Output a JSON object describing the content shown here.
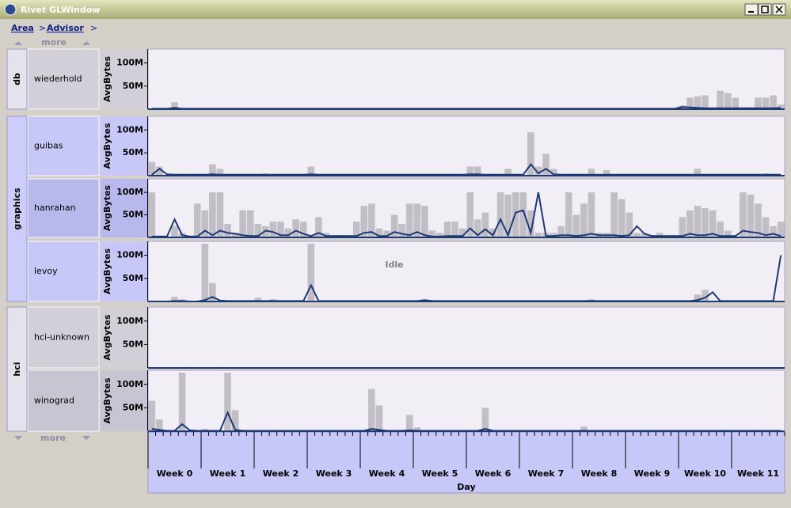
{
  "window": {
    "title": "Rivet GLWindow"
  },
  "breadcrumb": [
    "Area",
    ">",
    "Advisor",
    ">"
  ],
  "more": "more",
  "chart_data": {
    "type": "bar",
    "y_label": "AvgBytes",
    "x_label": "Day",
    "annotation": "Idle",
    "ylim": [
      0,
      130
    ],
    "yticks": [
      {
        "value": 50,
        "label": "50M"
      },
      {
        "value": 100,
        "label": "100M"
      }
    ],
    "xlim": [
      0,
      84
    ],
    "categories": [
      "Week 0",
      "Week 1",
      "Week 2",
      "Week 3",
      "Week 4",
      "Week 5",
      "Week 6",
      "Week 7",
      "Week 8",
      "Week 9",
      "Week 10",
      "Week 11"
    ],
    "bar_color": "#c2bec6",
    "line_color": "#1c3a78",
    "groups": [
      {
        "name": "db",
        "panels": [
          {
            "name": "wiederhold",
            "values": [
              0,
              0,
              0,
              15,
              0,
              0,
              0,
              2,
              0,
              0,
              0,
              0,
              0,
              0,
              0,
              0,
              0,
              0,
              0,
              0,
              0,
              0,
              0,
              0,
              0,
              0,
              0,
              0,
              0,
              0,
              0,
              0,
              0,
              0,
              0,
              0,
              0,
              0,
              0,
              0,
              0,
              0,
              0,
              0,
              0,
              0,
              0,
              0,
              0,
              0,
              0,
              0,
              0,
              0,
              0,
              0,
              0,
              0,
              0,
              0,
              0,
              0,
              0,
              0,
              0,
              0,
              0,
              0,
              0,
              0,
              8,
              25,
              28,
              30,
              0,
              40,
              35,
              25,
              0,
              0,
              25,
              25,
              30,
              10
            ],
            "line": [
              1,
              1,
              1,
              3,
              1,
              1,
              1,
              1,
              1,
              1,
              1,
              1,
              1,
              1,
              1,
              1,
              1,
              1,
              1,
              1,
              1,
              1,
              1,
              1,
              1,
              1,
              1,
              1,
              1,
              1,
              1,
              1,
              1,
              1,
              1,
              1,
              1,
              1,
              1,
              1,
              1,
              1,
              1,
              1,
              1,
              1,
              1,
              1,
              1,
              1,
              1,
              1,
              1,
              1,
              1,
              1,
              1,
              1,
              1,
              1,
              1,
              1,
              1,
              1,
              1,
              1,
              1,
              1,
              1,
              1,
              5,
              4,
              3,
              2,
              2,
              2,
              2,
              2,
              2,
              2,
              2,
              2,
              2,
              3
            ]
          }
        ]
      },
      {
        "name": "graphics",
        "panels": [
          {
            "name": "guibas",
            "values": [
              30,
              20,
              0,
              0,
              0,
              0,
              0,
              0,
              25,
              15,
              0,
              0,
              0,
              0,
              0,
              5,
              4,
              0,
              0,
              0,
              0,
              20,
              3,
              3,
              3,
              0,
              0,
              0,
              0,
              0,
              0,
              0,
              0,
              0,
              0,
              0,
              0,
              0,
              0,
              0,
              0,
              0,
              20,
              20,
              0,
              0,
              0,
              15,
              0,
              0,
              95,
              20,
              48,
              15,
              0,
              0,
              0,
              0,
              15,
              0,
              12,
              0,
              0,
              0,
              0,
              0,
              0,
              0,
              0,
              0,
              0,
              0,
              15,
              0,
              0,
              0,
              0,
              0,
              0,
              0,
              0,
              5,
              0,
              0
            ],
            "line": [
              2,
              15,
              3,
              2,
              2,
              2,
              2,
              2,
              3,
              2,
              2,
              2,
              2,
              2,
              2,
              2,
              2,
              2,
              2,
              2,
              2,
              3,
              2,
              2,
              2,
              2,
              2,
              2,
              2,
              2,
              2,
              2,
              2,
              2,
              2,
              2,
              2,
              2,
              2,
              2,
              2,
              2,
              3,
              3,
              2,
              2,
              2,
              2,
              2,
              2,
              25,
              5,
              15,
              3,
              2,
              2,
              2,
              2,
              2,
              2,
              2,
              2,
              2,
              2,
              2,
              2,
              2,
              2,
              2,
              2,
              2,
              2,
              2,
              2,
              2,
              2,
              2,
              2,
              2,
              2,
              2,
              2,
              2,
              2
            ]
          },
          {
            "name": "hanrahan",
            "values": [
              100,
              0,
              0,
              25,
              10,
              0,
              75,
              60,
              100,
              100,
              30,
              10,
              60,
              60,
              30,
              25,
              35,
              35,
              20,
              40,
              35,
              5,
              45,
              10,
              5,
              5,
              0,
              35,
              70,
              75,
              20,
              15,
              50,
              30,
              75,
              75,
              70,
              15,
              10,
              35,
              35,
              20,
              100,
              40,
              55,
              20,
              100,
              95,
              100,
              100,
              60,
              10,
              10,
              10,
              25,
              100,
              50,
              75,
              100,
              10,
              10,
              100,
              85,
              55,
              10,
              10,
              5,
              10,
              0,
              0,
              45,
              60,
              70,
              65,
              60,
              35,
              15,
              0,
              100,
              95,
              75,
              45,
              25,
              35
            ],
            "line": [
              2,
              2,
              2,
              40,
              5,
              2,
              2,
              15,
              5,
              15,
              10,
              8,
              5,
              3,
              3,
              15,
              12,
              5,
              5,
              15,
              8,
              3,
              10,
              3,
              3,
              3,
              3,
              3,
              10,
              12,
              3,
              3,
              12,
              8,
              5,
              12,
              5,
              2,
              2,
              3,
              3,
              3,
              20,
              5,
              18,
              5,
              40,
              5,
              55,
              60,
              10,
              100,
              3,
              3,
              5,
              5,
              3,
              5,
              8,
              5,
              5,
              5,
              3,
              5,
              25,
              8,
              3,
              3,
              3,
              3,
              3,
              8,
              5,
              5,
              8,
              3,
              3,
              3,
              15,
              12,
              10,
              5,
              8,
              3
            ]
          },
          {
            "name": "levoy",
            "values": [
              0,
              0,
              0,
              10,
              5,
              0,
              0,
              125,
              40,
              0,
              0,
              0,
              0,
              0,
              8,
              0,
              5,
              0,
              0,
              0,
              0,
              125,
              0,
              0,
              0,
              0,
              0,
              0,
              0,
              0,
              0,
              0,
              0,
              0,
              0,
              0,
              0,
              0,
              0,
              0,
              0,
              0,
              0,
              0,
              0,
              0,
              0,
              0,
              0,
              0,
              0,
              0,
              0,
              0,
              0,
              0,
              0,
              0,
              5,
              0,
              0,
              0,
              0,
              0,
              0,
              0,
              0,
              0,
              0,
              0,
              0,
              0,
              15,
              25,
              0,
              0,
              0,
              0,
              0,
              0,
              0,
              0,
              0,
              0
            ],
            "line": [
              0,
              0,
              0,
              1,
              1,
              0,
              0,
              3,
              10,
              2,
              1,
              1,
              1,
              1,
              1,
              1,
              1,
              1,
              1,
              1,
              1,
              35,
              1,
              1,
              1,
              1,
              1,
              1,
              1,
              1,
              1,
              1,
              1,
              1,
              1,
              1,
              3,
              1,
              1,
              1,
              1,
              1,
              1,
              1,
              1,
              1,
              1,
              1,
              1,
              1,
              1,
              1,
              1,
              1,
              1,
              1,
              1,
              1,
              1,
              1,
              1,
              1,
              1,
              1,
              1,
              1,
              1,
              1,
              1,
              1,
              1,
              1,
              3,
              8,
              20,
              1,
              1,
              1,
              1,
              1,
              1,
              1,
              1,
              100
            ]
          }
        ]
      },
      {
        "name": "hci",
        "panels": [
          {
            "name": "hci-unknown",
            "values": [
              0,
              0,
              0,
              0,
              0,
              0,
              0,
              0,
              0,
              0,
              0,
              0,
              0,
              0,
              0,
              0,
              0,
              0,
              0,
              0,
              0,
              0,
              0,
              0,
              0,
              0,
              0,
              0,
              0,
              0,
              0,
              0,
              0,
              0,
              0,
              0,
              0,
              0,
              0,
              0,
              0,
              0,
              0,
              0,
              0,
              0,
              0,
              0,
              0,
              0,
              0,
              0,
              0,
              0,
              0,
              0,
              0,
              0,
              0,
              0,
              0,
              0,
              0,
              0,
              0,
              0,
              0,
              0,
              0,
              0,
              0,
              0,
              0,
              0,
              0,
              0,
              0,
              0,
              0,
              0,
              0,
              0,
              0,
              0
            ],
            "line": [
              0,
              0,
              0,
              0,
              0,
              0,
              0,
              0,
              0,
              0,
              0,
              0,
              0,
              0,
              0,
              0,
              0,
              0,
              0,
              0,
              0,
              0,
              0,
              0,
              0,
              0,
              0,
              0,
              0,
              0,
              0,
              0,
              0,
              0,
              0,
              0,
              0,
              0,
              0,
              0,
              0,
              0,
              0,
              0,
              0,
              0,
              0,
              0,
              0,
              0,
              0,
              0,
              0,
              0,
              0,
              0,
              0,
              0,
              0,
              0,
              0,
              0,
              0,
              0,
              0,
              0,
              0,
              0,
              0,
              0,
              0,
              0,
              0,
              0,
              0,
              0,
              0,
              0,
              0,
              0,
              0,
              0,
              0,
              0
            ]
          },
          {
            "name": "winograd",
            "values": [
              65,
              25,
              0,
              0,
              125,
              0,
              0,
              5,
              0,
              0,
              125,
              45,
              0,
              0,
              0,
              0,
              0,
              0,
              0,
              0,
              0,
              0,
              0,
              0,
              0,
              0,
              0,
              0,
              0,
              90,
              55,
              0,
              0,
              0,
              35,
              8,
              0,
              0,
              0,
              0,
              0,
              0,
              0,
              0,
              50,
              0,
              0,
              0,
              0,
              0,
              0,
              0,
              0,
              0,
              0,
              0,
              0,
              10,
              0,
              0,
              0,
              0,
              0,
              0,
              0,
              0,
              0,
              0,
              0,
              0,
              0,
              0,
              0,
              0,
              0,
              0,
              0,
              0,
              0,
              0,
              0,
              0,
              0,
              0
            ],
            "line": [
              5,
              3,
              1,
              1,
              15,
              2,
              1,
              1,
              1,
              1,
              40,
              3,
              1,
              1,
              1,
              1,
              1,
              1,
              1,
              1,
              1,
              1,
              1,
              1,
              1,
              1,
              1,
              1,
              1,
              5,
              3,
              1,
              1,
              1,
              2,
              1,
              1,
              1,
              1,
              1,
              1,
              1,
              1,
              1,
              5,
              1,
              1,
              1,
              1,
              1,
              1,
              1,
              1,
              1,
              1,
              1,
              1,
              1,
              1,
              1,
              1,
              1,
              1,
              1,
              1,
              1,
              1,
              1,
              1,
              1,
              1,
              1,
              1,
              1,
              1,
              1,
              1,
              1,
              1,
              1,
              1,
              1,
              1,
              1
            ]
          }
        ]
      }
    ]
  }
}
